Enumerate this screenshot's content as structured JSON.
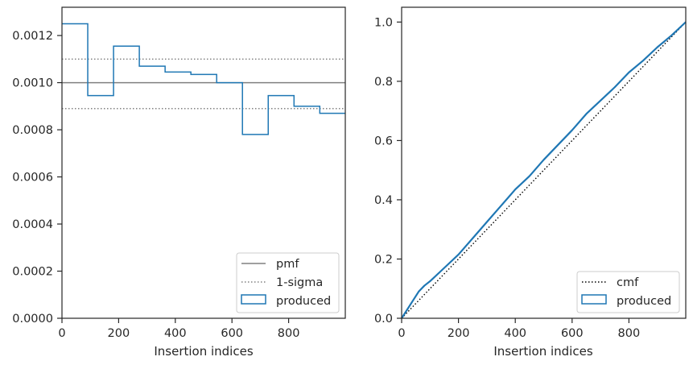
{
  "chart_data": [
    {
      "type": "step",
      "xlabel": "Insertion indices",
      "ylabel": "",
      "xlim": [
        0,
        1000
      ],
      "ylim": [
        0,
        0.00132
      ],
      "xticks": [
        0,
        200,
        400,
        600,
        800
      ],
      "xtick_labels": [
        "0",
        "200",
        "400",
        "600",
        "800"
      ],
      "yticks": [
        0,
        0.0002,
        0.0004,
        0.0006,
        0.0008,
        0.001,
        0.0012
      ],
      "ytick_labels": [
        "0.0000",
        "0.0002",
        "0.0004",
        "0.0006",
        "0.0008",
        "0.0010",
        "0.0012"
      ],
      "reference_lines": {
        "pmf": 0.001,
        "sigma_upper": 0.0011,
        "sigma_lower": 0.00089
      },
      "histogram": {
        "bin_edges": [
          0,
          91,
          182,
          273,
          364,
          455,
          546,
          637,
          728,
          819,
          910,
          1000
        ],
        "values": [
          0.00125,
          0.000945,
          0.001155,
          0.00107,
          0.001045,
          0.001035,
          0.001,
          0.00078,
          0.000945,
          0.0009,
          0.00087
        ]
      },
      "legend": {
        "position": "lower right",
        "entries": [
          {
            "label": "pmf",
            "style": "solid",
            "color": "#808080"
          },
          {
            "label": "1-sigma",
            "style": "dotted",
            "color": "#808080"
          },
          {
            "label": "produced",
            "style": "patch",
            "color": "#1f77b4"
          }
        ]
      }
    },
    {
      "type": "line",
      "xlabel": "Insertion indices",
      "ylabel": "",
      "xlim": [
        0,
        1000
      ],
      "ylim": [
        0,
        1.05
      ],
      "xticks": [
        0,
        200,
        400,
        600,
        800
      ],
      "xtick_labels": [
        "0",
        "200",
        "400",
        "600",
        "800"
      ],
      "yticks": [
        0,
        0.2,
        0.4,
        0.6,
        0.8,
        1.0
      ],
      "ytick_labels": [
        "0.0",
        "0.2",
        "0.4",
        "0.6",
        "0.8",
        "1.0"
      ],
      "cmf_line": {
        "x": [
          0,
          1000
        ],
        "y": [
          0,
          1
        ]
      },
      "produced": {
        "x": [
          0,
          20,
          40,
          60,
          80,
          100,
          150,
          200,
          250,
          300,
          350,
          400,
          450,
          500,
          550,
          600,
          650,
          700,
          750,
          800,
          850,
          900,
          950,
          1000
        ],
        "y": [
          0,
          0.03,
          0.06,
          0.09,
          0.11,
          0.125,
          0.17,
          0.215,
          0.27,
          0.325,
          0.38,
          0.435,
          0.48,
          0.535,
          0.585,
          0.635,
          0.69,
          0.735,
          0.78,
          0.83,
          0.87,
          0.915,
          0.955,
          1.0
        ]
      },
      "legend": {
        "position": "lower right",
        "entries": [
          {
            "label": "cmf",
            "style": "dotted",
            "color": "#000000"
          },
          {
            "label": "produced",
            "style": "patch",
            "color": "#1f77b4"
          }
        ]
      }
    }
  ]
}
